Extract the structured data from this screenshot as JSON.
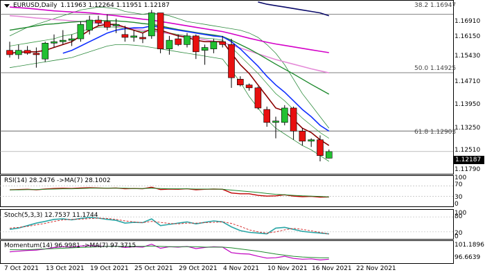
{
  "chart": {
    "symbol_tf": "EURUSD,Daily",
    "ohlc": "1.11963 1.12264 1.11951 1.12187",
    "last_price": "1.12187",
    "price_axis": [
      "1.16910",
      "1.16150",
      "1.15430",
      "1.14710",
      "1.13950",
      "1.13250",
      "1.12510",
      "1.11790"
    ],
    "fibo": [
      {
        "label": "38.2 1.16947",
        "price": 1.16947
      },
      {
        "label": "50.0 1.14925",
        "price": 1.14925
      },
      {
        "label": "61.8 1.12903",
        "price": 1.12903
      }
    ],
    "dates": [
      "7 Oct 2021",
      "13 Oct 2021",
      "19 Oct 2021",
      "25 Oct 2021",
      "29 Oct 2021",
      "4 Nov 2021",
      "10 Nov 2021",
      "16 Nov 2021",
      "22 Nov 2021"
    ]
  },
  "rsi": {
    "label": "RSI(14) 28.2476  ->MA(7) 28.1002",
    "axis": [
      "100",
      "70",
      "30",
      "0"
    ]
  },
  "stoch": {
    "label": "Stoch(5,3,3) 12.7537 11.1744",
    "axis": [
      "100",
      "80",
      "20",
      "0"
    ]
  },
  "momentum": {
    "label": "Momentum(14) 96.9981  ->MA(7) 97.3715",
    "axis": [
      "101.1896",
      "96.6639"
    ]
  },
  "chart_data": {
    "type": "candlestick",
    "title": "EURUSD,Daily",
    "ylim": [
      1.1149,
      1.1735
    ],
    "candles": [
      {
        "o": 1.157,
        "h": 1.16,
        "l": 1.1545,
        "c": 1.1555
      },
      {
        "o": 1.1555,
        "h": 1.159,
        "l": 1.154,
        "c": 1.157
      },
      {
        "o": 1.157,
        "h": 1.1585,
        "l": 1.1555,
        "c": 1.156
      },
      {
        "o": 1.156,
        "h": 1.158,
        "l": 1.151,
        "c": 1.1555
      },
      {
        "o": 1.154,
        "h": 1.16,
        "l": 1.153,
        "c": 1.1595
      },
      {
        "o": 1.1595,
        "h": 1.1625,
        "l": 1.158,
        "c": 1.16
      },
      {
        "o": 1.16,
        "h": 1.164,
        "l": 1.159,
        "c": 1.1605
      },
      {
        "o": 1.1605,
        "h": 1.1625,
        "l": 1.1585,
        "c": 1.161
      },
      {
        "o": 1.161,
        "h": 1.167,
        "l": 1.16,
        "c": 1.166
      },
      {
        "o": 1.164,
        "h": 1.169,
        "l": 1.1625,
        "c": 1.1675
      },
      {
        "o": 1.1675,
        "h": 1.169,
        "l": 1.1655,
        "c": 1.1665
      },
      {
        "o": 1.167,
        "h": 1.1695,
        "l": 1.164,
        "c": 1.165
      },
      {
        "o": 1.1655,
        "h": 1.168,
        "l": 1.163,
        "c": 1.166
      },
      {
        "o": 1.1625,
        "h": 1.1655,
        "l": 1.16,
        "c": 1.1615
      },
      {
        "o": 1.1615,
        "h": 1.164,
        "l": 1.16,
        "c": 1.162
      },
      {
        "o": 1.1615,
        "h": 1.163,
        "l": 1.1595,
        "c": 1.161
      },
      {
        "o": 1.162,
        "h": 1.171,
        "l": 1.161,
        "c": 1.17
      },
      {
        "o": 1.17,
        "h": 1.17,
        "l": 1.156,
        "c": 1.1575
      },
      {
        "o": 1.1575,
        "h": 1.162,
        "l": 1.1555,
        "c": 1.1605
      },
      {
        "o": 1.161,
        "h": 1.1625,
        "l": 1.1585,
        "c": 1.159
      },
      {
        "o": 1.159,
        "h": 1.163,
        "l": 1.158,
        "c": 1.162
      },
      {
        "o": 1.162,
        "h": 1.1625,
        "l": 1.154,
        "c": 1.1565
      },
      {
        "o": 1.157,
        "h": 1.159,
        "l": 1.152,
        "c": 1.158
      },
      {
        "o": 1.1575,
        "h": 1.161,
        "l": 1.156,
        "c": 1.16
      },
      {
        "o": 1.16,
        "h": 1.162,
        "l": 1.158,
        "c": 1.159
      },
      {
        "o": 1.159,
        "h": 1.161,
        "l": 1.144,
        "c": 1.1475
      },
      {
        "o": 1.147,
        "h": 1.148,
        "l": 1.1445,
        "c": 1.145
      },
      {
        "o": 1.145,
        "h": 1.1455,
        "l": 1.143,
        "c": 1.144
      },
      {
        "o": 1.144,
        "h": 1.1445,
        "l": 1.1365,
        "c": 1.137
      },
      {
        "o": 1.1365,
        "h": 1.1375,
        "l": 1.1305,
        "c": 1.132
      },
      {
        "o": 1.132,
        "h": 1.134,
        "l": 1.1265,
        "c": 1.1325
      },
      {
        "o": 1.132,
        "h": 1.138,
        "l": 1.131,
        "c": 1.137
      },
      {
        "o": 1.137,
        "h": 1.1375,
        "l": 1.126,
        "c": 1.129
      },
      {
        "o": 1.129,
        "h": 1.13,
        "l": 1.124,
        "c": 1.1255
      },
      {
        "o": 1.1255,
        "h": 1.1265,
        "l": 1.1235,
        "c": 1.126
      },
      {
        "o": 1.126,
        "h": 1.1275,
        "l": 1.1185,
        "c": 1.1205
      },
      {
        "o": 1.1196,
        "h": 1.1226,
        "l": 1.1195,
        "c": 1.1219
      }
    ],
    "lines": {
      "ma_red": [
        1.156,
        1.1563,
        1.1565,
        1.1565,
        1.157,
        1.158,
        1.159,
        1.16,
        1.162,
        1.164,
        1.1655,
        1.166,
        1.166,
        1.165,
        1.164,
        1.163,
        1.1645,
        1.164,
        1.163,
        1.162,
        1.1615,
        1.1605,
        1.16,
        1.16,
        1.16,
        1.156,
        1.152,
        1.149,
        1.145,
        1.141,
        1.137,
        1.136,
        1.133,
        1.13,
        1.1285,
        1.126,
        1.124
      ],
      "ma_blue": [
        null,
        null,
        null,
        null,
        null,
        null,
        1.156,
        1.157,
        1.1585,
        1.16,
        1.1615,
        1.163,
        1.164,
        1.1645,
        1.1648,
        1.1648,
        1.1655,
        1.165,
        1.1645,
        1.164,
        1.1635,
        1.163,
        1.1625,
        1.162,
        1.1617,
        1.16,
        1.1575,
        1.1545,
        1.1515,
        1.148,
        1.145,
        1.1425,
        1.1395,
        1.1365,
        1.134,
        1.131,
        1.129
      ],
      "ma_green": [
        1.164,
        1.1645,
        1.165,
        1.1655,
        1.166,
        1.1662,
        1.1665,
        1.1668,
        1.167,
        1.1672,
        1.1673,
        1.1673,
        1.1672,
        1.167,
        1.1667,
        1.1663,
        1.166,
        1.1655,
        1.1648,
        1.1642,
        1.1637,
        1.1632,
        1.1627,
        1.1623,
        1.1618,
        1.1605,
        1.159,
        1.1575,
        1.1558,
        1.154,
        1.1522,
        1.1505,
        1.1488,
        1.147,
        1.1452,
        1.1435,
        1.1418
      ],
      "ma_magenta": [
        1.172,
        1.1718,
        1.1716,
        1.1713,
        1.171,
        1.1707,
        1.1705,
        1.1703,
        1.1702,
        1.17,
        1.1697,
        1.1693,
        1.169,
        1.1686,
        1.1682,
        1.1678,
        1.1675,
        1.167,
        1.1665,
        1.166,
        1.1655,
        1.165,
        1.1645,
        1.164,
        1.1635,
        1.1628,
        1.162,
        1.1612,
        1.1605,
        1.1598,
        1.1592,
        1.1587,
        1.1582,
        1.1577,
        1.1572,
        1.1567,
        1.1562
      ],
      "ma_pink": [
        1.169,
        1.1688,
        1.1685,
        1.1682,
        1.168,
        1.1677,
        1.1675,
        1.1672,
        1.167,
        1.1667,
        1.1664,
        1.166,
        1.1655,
        1.165,
        1.1645,
        1.164,
        1.1638,
        1.1632,
        1.1628,
        1.1622,
        1.1617,
        1.1612,
        1.1607,
        1.1602,
        1.1597,
        1.1588,
        1.1578,
        1.1568,
        1.1558,
        1.1548,
        1.1538,
        1.153,
        1.1522,
        1.1514,
        1.1506,
        1.1499,
        1.1492
      ],
      "ma_navy": [
        null,
        null,
        null,
        null,
        null,
        null,
        null,
        null,
        null,
        null,
        null,
        null,
        null,
        null,
        null,
        null,
        null,
        null,
        null,
        null,
        null,
        null,
        null,
        null,
        null,
        null,
        null,
        null,
        1.1738,
        1.173,
        1.1725,
        1.172,
        1.1715,
        1.171,
        1.1705,
        1.17,
        1.169
      ],
      "bb_upper": [
        1.162,
        1.1635,
        1.165,
        1.166,
        1.167,
        1.168,
        1.169,
        1.17,
        1.171,
        1.1715,
        1.172,
        1.1718,
        1.1715,
        1.1705,
        1.17,
        1.1695,
        1.17,
        1.1695,
        1.169,
        1.168,
        1.167,
        1.1665,
        1.166,
        1.1655,
        1.165,
        1.1645,
        1.164,
        1.163,
        1.1615,
        1.159,
        1.156,
        1.152,
        1.147,
        1.142,
        1.138,
        1.134,
        1.13
      ],
      "bb_lower": [
        1.151,
        1.1515,
        1.152,
        1.1525,
        1.153,
        1.1535,
        1.154,
        1.1545,
        1.1555,
        1.1565,
        1.1575,
        1.1585,
        1.159,
        1.159,
        1.1588,
        1.1585,
        1.158,
        1.1575,
        1.157,
        1.1565,
        1.156,
        1.1555,
        1.155,
        1.1545,
        1.154,
        1.15,
        1.146,
        1.141,
        1.137,
        1.133,
        1.13,
        1.128,
        1.126,
        1.124,
        1.1225,
        1.1205,
        1.1185
      ],
      "green_thin": [
        1.1585,
        1.159,
        1.1595,
        1.16,
        1.1605,
        1.161,
        1.162,
        1.1625,
        1.1635,
        1.1645,
        1.165,
        1.1652,
        1.165,
        1.1645,
        1.164,
        1.1635,
        1.164,
        1.1635,
        1.163,
        1.1625,
        1.162,
        1.1615,
        1.1612,
        1.161,
        1.1605,
        1.158,
        1.155,
        1.152,
        1.149,
        1.1455,
        1.142,
        1.1395,
        1.1365,
        1.1335,
        1.131,
        1.1285,
        1.1265
      ]
    },
    "rsi": [
      55,
      56,
      57,
      55,
      58,
      60,
      61,
      60,
      62,
      63,
      62,
      61,
      62,
      59,
      60,
      59,
      65,
      56,
      58,
      57,
      59,
      55,
      57,
      58,
      57,
      43,
      40,
      40,
      34,
      31,
      32,
      36,
      31,
      29,
      30,
      27,
      28
    ],
    "rsi_ma": [
      55,
      55,
      56,
      56,
      57,
      58,
      59,
      59,
      60,
      61,
      61,
      61,
      61,
      61,
      60,
      60,
      61,
      60,
      59,
      59,
      59,
      58,
      58,
      58,
      57,
      54,
      51,
      48,
      45,
      41,
      38,
      36,
      34,
      32,
      31,
      30,
      28
    ],
    "stoch_k": [
      30,
      35,
      45,
      55,
      62,
      70,
      72,
      68,
      74,
      78,
      75,
      70,
      66,
      55,
      58,
      57,
      72,
      45,
      50,
      55,
      60,
      52,
      58,
      64,
      60,
      40,
      25,
      18,
      15,
      12,
      35,
      38,
      30,
      22,
      18,
      15,
      12
    ],
    "stoch_d": [
      35,
      38,
      42,
      48,
      54,
      62,
      68,
      70,
      71,
      73,
      75,
      74,
      70,
      64,
      60,
      57,
      62,
      58,
      54,
      52,
      55,
      55,
      57,
      58,
      60,
      54,
      42,
      28,
      20,
      15,
      20,
      28,
      34,
      30,
      24,
      18,
      11
    ],
    "momentum": [
      99.0,
      99.2,
      99.4,
      99.5,
      99.8,
      100.2,
      100.4,
      100.3,
      100.6,
      100.7,
      100.6,
      100.5,
      100.6,
      100.2,
      100.4,
      100.3,
      101.1,
      100.0,
      100.4,
      100.3,
      100.5,
      99.9,
      100.2,
      100.4,
      100.3,
      98.8,
      98.5,
      98.4,
      97.8,
      97.3,
      97.4,
      97.8,
      97.2,
      97.0,
      97.1,
      96.8,
      97.0
    ],
    "momentum_ma": [
      99.6,
      99.6,
      99.6,
      99.7,
      99.8,
      99.9,
      100.0,
      100.1,
      100.2,
      100.3,
      100.4,
      100.5,
      100.5,
      100.5,
      100.5,
      100.5,
      100.6,
      100.5,
      100.4,
      100.4,
      100.4,
      100.4,
      100.3,
      100.3,
      100.3,
      100.1,
      99.8,
      99.5,
      99.2,
      98.8,
      98.4,
      98.1,
      97.8,
      97.6,
      97.5,
      97.4,
      97.4
    ]
  }
}
